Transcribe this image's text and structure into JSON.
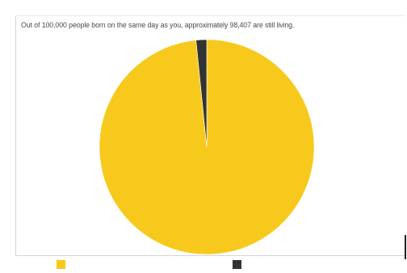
{
  "chart_data": {
    "type": "pie",
    "title": "Out of 100,000 people born on the same day as you, approximately 98,407 are still living.",
    "slices": [
      {
        "label": "",
        "value": 98407,
        "color": "#f7c91d"
      },
      {
        "label": "",
        "value": 1593,
        "color": "#333333"
      }
    ],
    "total": 100000,
    "legend_position": "bottom"
  }
}
